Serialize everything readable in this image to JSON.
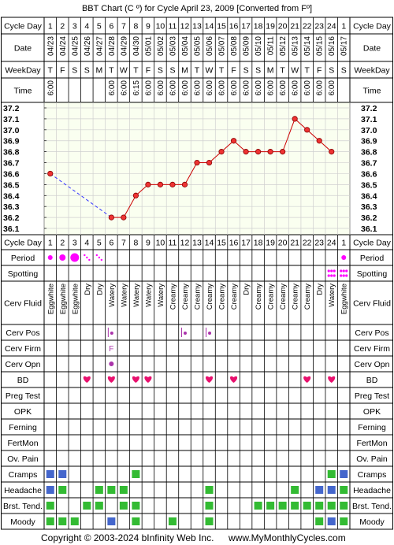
{
  "title": "BBT Chart (C º) for Cycle April 23, 2009  [Converted from Fº]",
  "copyright": "Copyright © 2003-2024 bInfinity Web Inc.",
  "site": "www.MyMonthlyCycles.com",
  "labels": {
    "cycle_day": "Cycle Day",
    "date": "Date",
    "weekday": "WeekDay",
    "time": "Time",
    "period": "Period",
    "spotting": "Spotting",
    "cerv_fluid": "Cerv Fluid",
    "cerv_pos": "Cerv Pos",
    "cerv_firm": "Cerv Firm",
    "cerv_opn": "Cerv Opn",
    "bd": "BD",
    "preg_test": "Preg Test",
    "opk": "OPK",
    "ferning": "Ferning",
    "fertmon": "FertMon",
    "ov_pain": "Ov. Pain",
    "cramps": "Cramps",
    "headache": "Headache",
    "brst_tend": "Brst. Tend.",
    "moody": "Moody"
  },
  "cycle_days": [
    "1",
    "2",
    "3",
    "4",
    "5",
    "6",
    "7",
    "8",
    "9",
    "10",
    "11",
    "12",
    "13",
    "14",
    "15",
    "16",
    "17",
    "18",
    "19",
    "20",
    "21",
    "22",
    "23",
    "24",
    "1"
  ],
  "dates": [
    "04/23",
    "04/24",
    "04/25",
    "04/26",
    "04/27",
    "04/28",
    "04/29",
    "04/30",
    "05/01",
    "05/02",
    "05/03",
    "05/04",
    "05/05",
    "05/06",
    "05/07",
    "05/08",
    "05/09",
    "05/10",
    "05/11",
    "05/12",
    "05/13",
    "05/14",
    "05/15",
    "05/16",
    "05/17"
  ],
  "weekdays": [
    "T",
    "F",
    "S",
    "S",
    "M",
    "T",
    "W",
    "T",
    "F",
    "S",
    "S",
    "M",
    "T",
    "W",
    "T",
    "F",
    "S",
    "S",
    "M",
    "T",
    "W",
    "T",
    "F",
    "S",
    "S"
  ],
  "times": [
    "6:00",
    "",
    "",
    "",
    "",
    "6:00",
    "6:00",
    "6:15",
    "6:00",
    "6:00",
    "6:00",
    "6:00",
    "6:00",
    "6:00",
    "6:00",
    "6:00",
    "6:00",
    "6:00",
    "6:00",
    "6:00",
    "6:00",
    "6:00",
    "6:00",
    "6:00",
    ""
  ],
  "cerv_fluid": [
    "Eggwhite",
    "Eggwhite",
    "Eggwhite",
    "Dry",
    "Dry",
    "Watery",
    "Watery",
    "Watery",
    "Watery",
    "Watery",
    "Creamy",
    "Creamy",
    "Creamy",
    "Creamy",
    "Creamy",
    "Creamy",
    "Dry",
    "Creamy",
    "Creamy",
    "Creamy",
    "Creamy",
    "Creamy",
    "Dry",
    "Watery",
    "Eggwhite"
  ],
  "cerv_firm": [
    "",
    "",
    "",
    "",
    "",
    "F",
    "",
    "",
    "",
    "",
    "",
    "",
    "",
    "",
    "",
    "",
    "",
    "",
    "",
    "",
    "",
    "",
    "",
    "",
    ""
  ],
  "period": [
    2,
    3,
    4,
    1,
    1,
    0,
    0,
    0,
    0,
    0,
    0,
    0,
    0,
    0,
    0,
    0,
    0,
    0,
    0,
    0,
    0,
    0,
    0,
    0,
    2
  ],
  "spotting": [
    0,
    0,
    0,
    0,
    0,
    0,
    0,
    0,
    0,
    0,
    0,
    0,
    0,
    0,
    0,
    0,
    0,
    0,
    0,
    0,
    0,
    0,
    0,
    1,
    1
  ],
  "cerv_pos": [
    0,
    0,
    0,
    0,
    0,
    1,
    0,
    0,
    0,
    0,
    0,
    1,
    0,
    1,
    0,
    0,
    0,
    0,
    0,
    0,
    0,
    0,
    0,
    0,
    0
  ],
  "cerv_opn": [
    0,
    0,
    0,
    0,
    0,
    1,
    0,
    0,
    0,
    0,
    0,
    0,
    0,
    0,
    0,
    0,
    0,
    0,
    0,
    0,
    0,
    0,
    0,
    0,
    0
  ],
  "bd": [
    0,
    0,
    0,
    1,
    0,
    1,
    0,
    1,
    1,
    0,
    0,
    0,
    0,
    1,
    0,
    1,
    0,
    0,
    0,
    0,
    0,
    1,
    0,
    1,
    0
  ],
  "symptoms": {
    "cramps": [
      "b",
      "b",
      "",
      "",
      "",
      "",
      "",
      "g",
      "",
      "",
      "",
      "",
      "",
      "",
      "",
      "",
      "",
      "",
      "",
      "",
      "",
      "",
      "",
      "g",
      "b"
    ],
    "headache": [
      "b",
      "g",
      "",
      "",
      "g",
      "g",
      "g",
      "",
      "",
      "",
      "",
      "",
      "",
      "g",
      "",
      "",
      "",
      "",
      "",
      "",
      "g",
      "",
      "b",
      "b",
      "g"
    ],
    "brst_tend": [
      "g",
      "",
      "",
      "g",
      "g",
      "",
      "g",
      "g",
      "",
      "",
      "",
      "",
      "",
      "g",
      "",
      "",
      "",
      "g",
      "g",
      "g",
      "g",
      "g",
      "g",
      "g",
      "g"
    ],
    "moody": [
      "g",
      "g",
      "g",
      "",
      "",
      "b",
      "",
      "g",
      "",
      "",
      "g",
      "",
      "",
      "g",
      "",
      "",
      "",
      "",
      "",
      "",
      "",
      "",
      "g",
      "b",
      "g"
    ]
  },
  "chart_data": {
    "type": "line",
    "x": [
      "1",
      "2",
      "3",
      "4",
      "5",
      "6",
      "7",
      "8",
      "9",
      "10",
      "11",
      "12",
      "13",
      "14",
      "15",
      "16",
      "17",
      "18",
      "19",
      "20",
      "21",
      "22",
      "23",
      "24",
      "1"
    ],
    "y": [
      36.6,
      null,
      null,
      null,
      null,
      36.2,
      36.2,
      36.4,
      36.5,
      36.5,
      36.5,
      36.5,
      36.7,
      36.7,
      36.8,
      36.9,
      36.8,
      36.8,
      36.8,
      36.8,
      37.1,
      37.0,
      36.9,
      36.8,
      null
    ],
    "yticks": [
      "37.2",
      "37.1",
      "37.0",
      "36.9",
      "36.8",
      "36.7",
      "36.6",
      "36.5",
      "36.4",
      "36.3",
      "36.2",
      "36.1"
    ],
    "ylim": [
      36.1,
      37.2
    ],
    "grid": true
  },
  "colors": {
    "line": "#cc0000",
    "marker": "#ee3333",
    "gap_line": "#3333ff",
    "chart_bg": "#fafff0",
    "period": "#ff00ff",
    "heart": "#e8116e",
    "green": "#33bb33",
    "blue": "#4466cc",
    "cervpos": "#aa33aa"
  }
}
